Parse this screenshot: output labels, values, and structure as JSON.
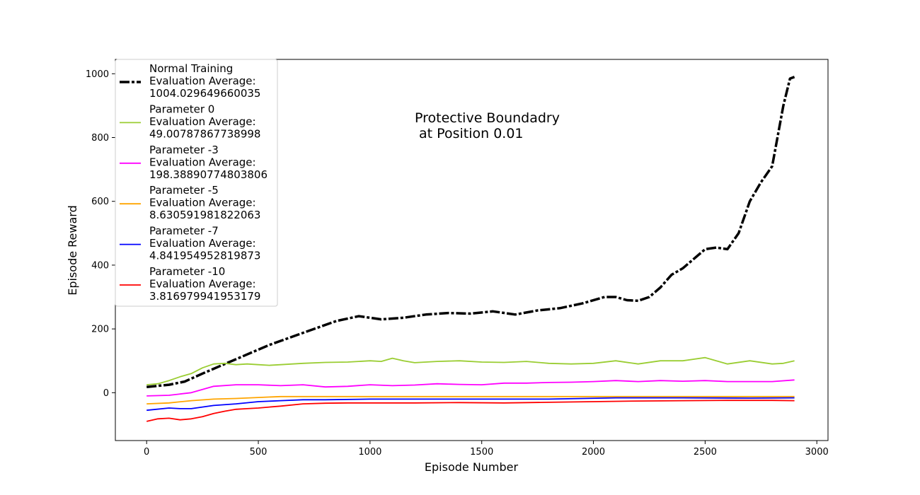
{
  "chart_data": {
    "type": "line",
    "title": "",
    "xlabel": "Episode Number",
    "ylabel": "Episode Reward",
    "xlim": [
      -140,
      3050
    ],
    "ylim": [
      -150,
      1045
    ],
    "xticks": [
      0,
      500,
      1000,
      1500,
      2000,
      2500,
      3000
    ],
    "yticks": [
      0,
      200,
      400,
      600,
      800,
      1000
    ],
    "grid": false,
    "legend_position": "upper-left",
    "annotation": [
      "Protective Boundadry",
      " at Position 0.01"
    ],
    "series": [
      {
        "name": "Normal Training",
        "legend_lines": [
          "Normal Training",
          " Evaluation Average:",
          " 1004.029649660035"
        ],
        "color": "#000000",
        "style": "dashdot",
        "x": [
          0,
          100,
          170,
          250,
          350,
          450,
          550,
          650,
          750,
          850,
          950,
          1050,
          1150,
          1250,
          1350,
          1450,
          1550,
          1650,
          1750,
          1850,
          1950,
          2050,
          2100,
          2150,
          2200,
          2250,
          2300,
          2350,
          2400,
          2450,
          2500,
          2550,
          2600,
          2650,
          2700,
          2750,
          2800,
          2850,
          2880,
          2900
        ],
        "values": [
          18,
          25,
          35,
          60,
          90,
          120,
          150,
          175,
          200,
          225,
          240,
          230,
          235,
          245,
          250,
          248,
          255,
          245,
          258,
          265,
          280,
          300,
          300,
          290,
          288,
          300,
          330,
          370,
          390,
          420,
          450,
          455,
          450,
          500,
          600,
          660,
          710,
          900,
          985,
          990
        ]
      },
      {
        "name": "Parameter 0",
        "legend_lines": [
          "Parameter 0",
          " Evaluation Average:",
          " 49.00787867738998"
        ],
        "color": "#9acd32",
        "style": "solid",
        "x": [
          0,
          50,
          100,
          150,
          200,
          250,
          300,
          350,
          400,
          450,
          500,
          550,
          600,
          700,
          800,
          900,
          1000,
          1050,
          1100,
          1150,
          1200,
          1300,
          1400,
          1500,
          1600,
          1700,
          1800,
          1900,
          2000,
          2100,
          2200,
          2300,
          2400,
          2500,
          2550,
          2600,
          2700,
          2800,
          2850,
          2900
        ],
        "values": [
          25,
          28,
          38,
          50,
          60,
          78,
          90,
          92,
          88,
          90,
          88,
          86,
          88,
          92,
          95,
          96,
          100,
          98,
          108,
          100,
          94,
          98,
          100,
          96,
          95,
          98,
          92,
          90,
          92,
          100,
          90,
          100,
          100,
          110,
          100,
          90,
          100,
          90,
          92,
          100
        ]
      },
      {
        "name": "Parameter -3",
        "legend_lines": [
          "Parameter -3",
          " Evaluation Average:",
          " 198.38890774803806"
        ],
        "color": "#ff00ff",
        "style": "solid",
        "x": [
          0,
          100,
          200,
          250,
          300,
          400,
          500,
          600,
          700,
          800,
          900,
          1000,
          1100,
          1200,
          1300,
          1400,
          1500,
          1600,
          1700,
          1800,
          1900,
          2000,
          2100,
          2200,
          2300,
          2400,
          2500,
          2600,
          2700,
          2800,
          2900
        ],
        "values": [
          -10,
          -8,
          0,
          10,
          20,
          25,
          25,
          22,
          25,
          18,
          20,
          25,
          22,
          24,
          28,
          26,
          25,
          30,
          30,
          32,
          33,
          35,
          38,
          35,
          38,
          36,
          38,
          35,
          35,
          35,
          40
        ]
      },
      {
        "name": "Parameter -5",
        "legend_lines": [
          "Parameter -5",
          " Evaluation Average:",
          " 8.630591981822063"
        ],
        "color": "#ffa500",
        "style": "solid",
        "x": [
          0,
          100,
          200,
          300,
          400,
          500,
          600,
          700,
          800,
          1000,
          1200,
          1500,
          1800,
          2100,
          2400,
          2700,
          2900
        ],
        "values": [
          -35,
          -32,
          -25,
          -20,
          -18,
          -15,
          -12,
          -12,
          -12,
          -12,
          -12,
          -12,
          -12,
          -12,
          -12,
          -12,
          -12
        ]
      },
      {
        "name": "Parameter -7",
        "legend_lines": [
          "Parameter -7",
          " Evaluation Average:",
          " 4.841954952819873"
        ],
        "color": "#0000ff",
        "style": "solid",
        "x": [
          0,
          100,
          150,
          200,
          250,
          300,
          400,
          500,
          600,
          700,
          800,
          1000,
          1200,
          1500,
          1800,
          2100,
          2400,
          2700,
          2900
        ],
        "values": [
          -55,
          -48,
          -50,
          -50,
          -45,
          -40,
          -35,
          -28,
          -25,
          -22,
          -22,
          -20,
          -20,
          -20,
          -20,
          -16,
          -16,
          -17,
          -16
        ]
      },
      {
        "name": "Parameter -10",
        "legend_lines": [
          "Parameter -10",
          " Evaluation Average:",
          " 3.816979941953179"
        ],
        "color": "#ff0000",
        "style": "solid",
        "x": [
          0,
          50,
          100,
          150,
          200,
          250,
          300,
          350,
          400,
          450,
          500,
          550,
          600,
          700,
          800,
          900,
          1000,
          1200,
          1400,
          1600,
          1800,
          2000,
          2200,
          2400,
          2600,
          2800,
          2900
        ],
        "values": [
          -90,
          -82,
          -80,
          -85,
          -82,
          -75,
          -65,
          -58,
          -52,
          -50,
          -48,
          -45,
          -42,
          -35,
          -33,
          -32,
          -32,
          -32,
          -31,
          -32,
          -30,
          -28,
          -26,
          -25,
          -24,
          -24,
          -25
        ]
      }
    ]
  }
}
